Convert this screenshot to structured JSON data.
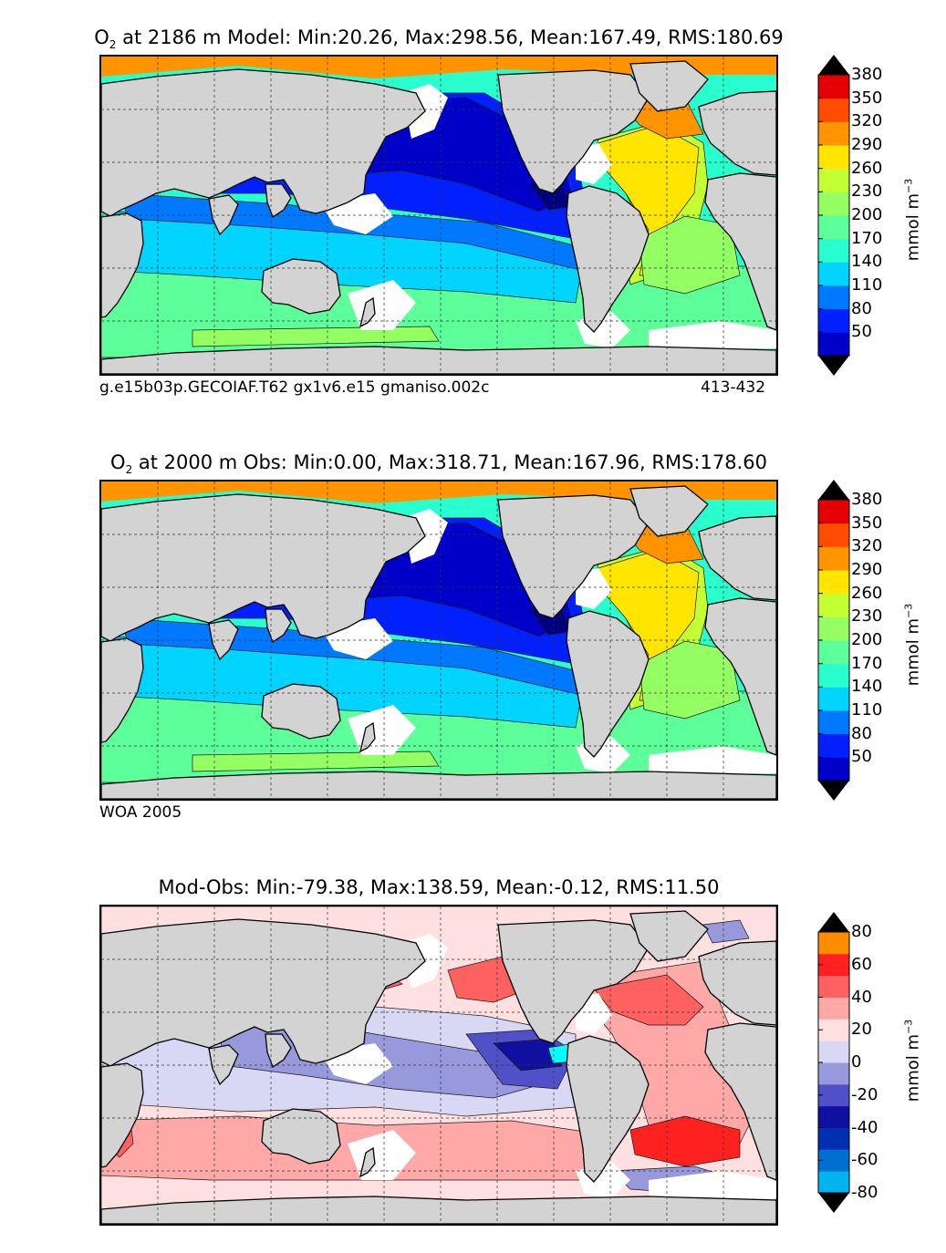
{
  "panels": [
    {
      "title_var": "O",
      "title_sub": "2",
      "title_rest": "at 2186 m Model: Min:20.26, Max:298.56, Mean:167.49, RMS:180.69",
      "caption_left": "g.e15b03p.GECOIAF.T62 gx1v6.e15 gmaniso.002c",
      "caption_right": "413-432",
      "colorbar": {
        "ticks": [
          "50",
          "80",
          "110",
          "140",
          "170",
          "200",
          "230",
          "260",
          "290",
          "320",
          "350",
          "380"
        ],
        "unit": "mmol m",
        "unit_sup": "−3",
        "colors": [
          "#00007f",
          "#0000c8",
          "#0020ff",
          "#0078ff",
          "#00d4ff",
          "#29ffce",
          "#5dff9a",
          "#94ff63",
          "#c4ff33",
          "#ffe500",
          "#ff9400",
          "#ff4c00",
          "#e40000",
          "#7f0000"
        ]
      }
    },
    {
      "title_var": "O",
      "title_sub": "2",
      "title_rest": "at 2000 m Obs: Min:0.00, Max:318.71, Mean:167.96, RMS:178.60",
      "caption_left": "WOA 2005",
      "caption_right": "",
      "colorbar": {
        "ticks": [
          "50",
          "80",
          "110",
          "140",
          "170",
          "200",
          "230",
          "260",
          "290",
          "320",
          "350",
          "380"
        ],
        "unit": "mmol m",
        "unit_sup": "−3",
        "colors": [
          "#00007f",
          "#0000c8",
          "#0020ff",
          "#0078ff",
          "#00d4ff",
          "#29ffce",
          "#5dff9a",
          "#94ff63",
          "#c4ff33",
          "#ffe500",
          "#ff9400",
          "#ff4c00",
          "#e40000",
          "#7f0000"
        ]
      }
    },
    {
      "title_var": "",
      "title_sub": "",
      "title_rest": "Mod-Obs: Min:-79.38, Max:138.59, Mean:-0.12, RMS:11.50",
      "caption_left": "",
      "caption_right": "",
      "colorbar": {
        "ticks": [
          "-80",
          "-60",
          "-40",
          "-20",
          "0",
          "20",
          "40",
          "60",
          "80"
        ],
        "unit": "mmol m",
        "unit_sup": "−3",
        "colors": [
          "#00ffff",
          "#00b4f0",
          "#0070d0",
          "#0030b0",
          "#1010a0",
          "#5050c8",
          "#9898dc",
          "#d8d8f4",
          "#ffe0e0",
          "#ffa8a8",
          "#ff6060",
          "#ff2020",
          "#ff8c00",
          "#ffe000"
        ]
      }
    }
  ]
}
